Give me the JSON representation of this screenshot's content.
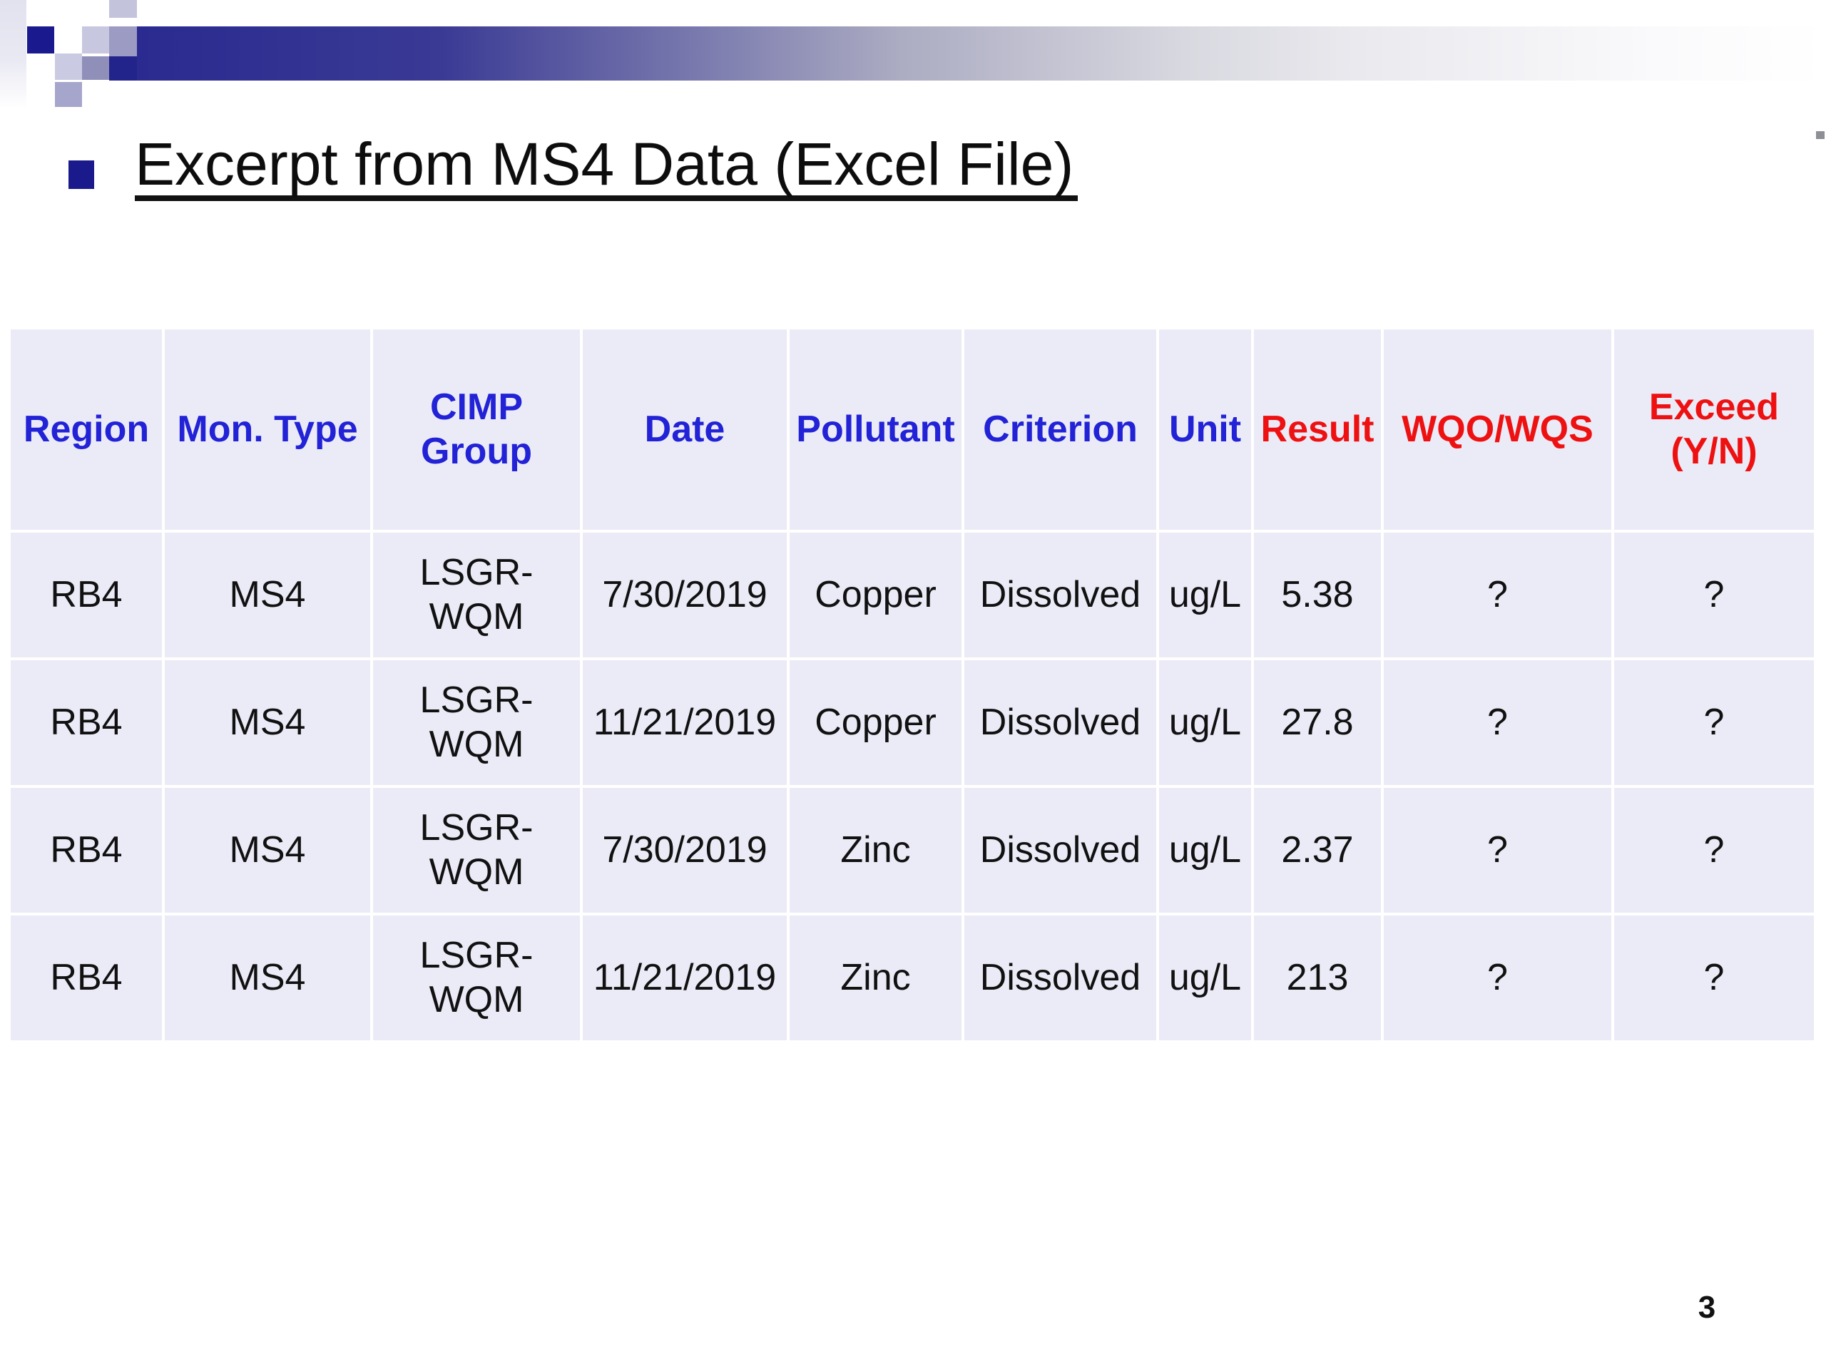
{
  "title": {
    "text": "Excerpt from MS4 Data (Excel File)"
  },
  "colors": {
    "header_blue": "#2222D6",
    "header_red": "#EE1111",
    "accent_navy": "#1A1A8E",
    "bar_gradient_start": "#2A2A90",
    "cell_background": "#EBEBF8",
    "grid_line": "#FFFFFF",
    "data_text": "#111111"
  },
  "table": {
    "headers": [
      {
        "label": "Region",
        "color": "#2222D6"
      },
      {
        "label": "Mon. Type",
        "color": "#2222D6"
      },
      {
        "label": "CIMP\nGroup",
        "color": "#2222D6"
      },
      {
        "label": "Date",
        "color": "#2222D6"
      },
      {
        "label": "Pollutant",
        "color": "#2222D6"
      },
      {
        "label": "Criterion",
        "color": "#2222D6"
      },
      {
        "label": "Unit",
        "color": "#2222D6"
      },
      {
        "label": "Result",
        "color": "#EE1111"
      },
      {
        "label": "WQO/WQS",
        "color": "#EE1111"
      },
      {
        "label": "Exceed\n(Y/N)",
        "color": "#EE1111"
      }
    ],
    "rows": [
      [
        "RB4",
        "MS4",
        "LSGR-\nWQM",
        "7/30/2019",
        "Copper",
        "Dissolved",
        "ug/L",
        "5.38",
        "?",
        "?"
      ],
      [
        "RB4",
        "MS4",
        "LSGR-\nWQM",
        "11/21/2019",
        "Copper",
        "Dissolved",
        "ug/L",
        "27.8",
        "?",
        "?"
      ],
      [
        "RB4",
        "MS4",
        "LSGR-\nWQM",
        "7/30/2019",
        "Zinc",
        "Dissolved",
        "ug/L",
        "2.37",
        "?",
        "?"
      ],
      [
        "RB4",
        "MS4",
        "LSGR-\nWQM",
        "11/21/2019",
        "Zinc",
        "Dissolved",
        "ug/L",
        "213",
        "?",
        "?"
      ]
    ]
  },
  "page": {
    "number": "3"
  }
}
